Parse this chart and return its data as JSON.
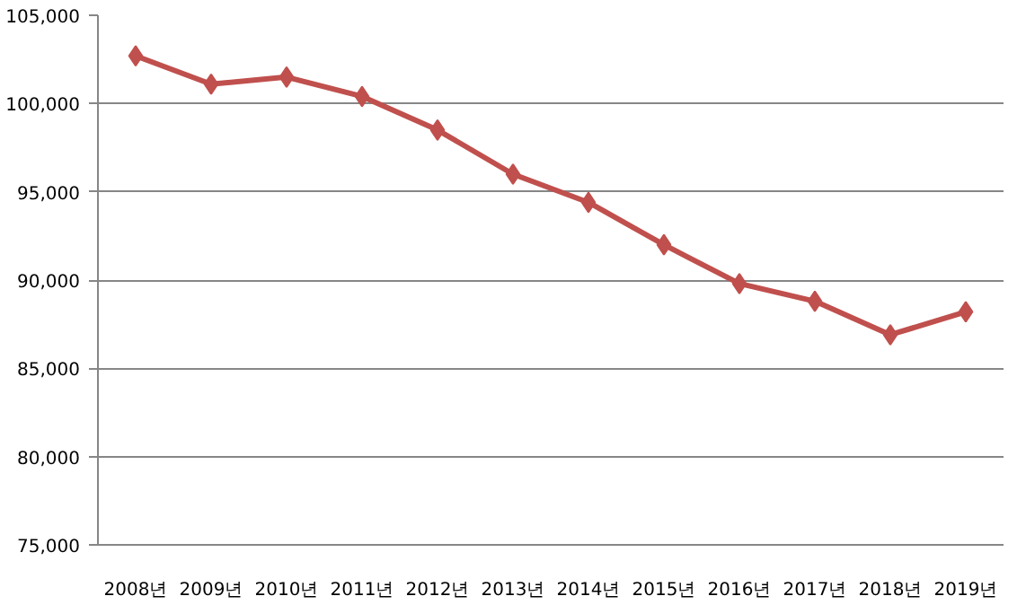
{
  "chart_data": {
    "type": "line",
    "categories": [
      "2008년",
      "2009년",
      "2010년",
      "2011년",
      "2012년",
      "2013년",
      "2014년",
      "2015년",
      "2016년",
      "2017년",
      "2018년",
      "2019년"
    ],
    "series": [
      {
        "color": "#c0504d",
        "values": [
          102700,
          101100,
          101500,
          100400,
          98500,
          96000,
          94400,
          92000,
          89800,
          88800,
          86900,
          88200
        ]
      }
    ],
    "ylim": [
      75000,
      105000
    ],
    "yticks": [
      {
        "value": 75000,
        "label": "75,000"
      },
      {
        "value": 80000,
        "label": "80,000"
      },
      {
        "value": 85000,
        "label": "85,000"
      },
      {
        "value": 90000,
        "label": "90,000"
      },
      {
        "value": 95000,
        "label": "95,000"
      },
      {
        "value": 100000,
        "label": "100,000"
      },
      {
        "value": 105000,
        "label": "105,000"
      }
    ],
    "grid": "y",
    "marker": "diamond"
  }
}
